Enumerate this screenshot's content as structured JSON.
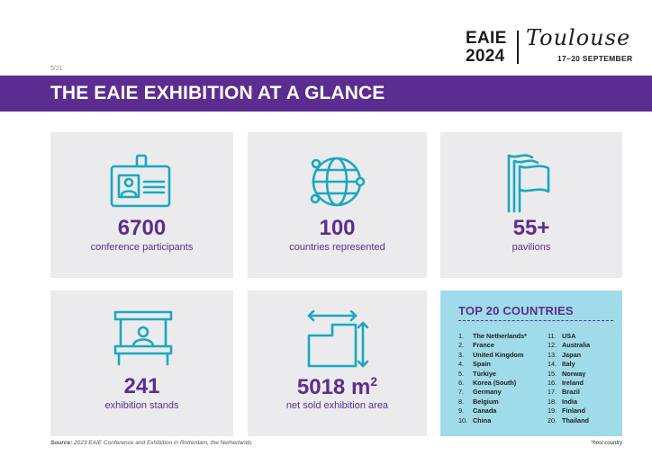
{
  "logo": {
    "org": "EAIE",
    "year": "2024",
    "city": "Toulouse",
    "dates": "17–20 SEPTEMBER"
  },
  "page_number": "5/21",
  "title": "THE EAIE EXHIBITION AT A GLANCE",
  "colors": {
    "purple": "#5c2d91",
    "teal": "#1ba7c1",
    "card_grey": "#ebebed",
    "light_blue": "#9fdbe9"
  },
  "stats": [
    {
      "icon": "id-badge-icon",
      "value": "6700",
      "label": "conference participants"
    },
    {
      "icon": "globe-network-icon",
      "value": "100",
      "label": "countries represented"
    },
    {
      "icon": "flags-icon",
      "value": "55+",
      "label": "pavilions"
    },
    {
      "icon": "booth-stand-icon",
      "value": "241",
      "label": "exhibition stands"
    },
    {
      "icon": "floor-area-icon",
      "value": "5018 m",
      "unit_sup": "2",
      "label": "net sold exhibition area"
    }
  ],
  "top_countries": {
    "title": "TOP 20 COUNTRIES",
    "left": [
      {
        "n": "1.",
        "name": "The Netherlands*"
      },
      {
        "n": "2.",
        "name": "France"
      },
      {
        "n": "3.",
        "name": "United Kingdom"
      },
      {
        "n": "4.",
        "name": "Spain"
      },
      {
        "n": "5.",
        "name": "Türkiye"
      },
      {
        "n": "6.",
        "name": "Korea (South)"
      },
      {
        "n": "7.",
        "name": "Germany"
      },
      {
        "n": "8.",
        "name": "Belgium"
      },
      {
        "n": "9.",
        "name": "Canada"
      },
      {
        "n": "10.",
        "name": "China"
      }
    ],
    "right": [
      {
        "n": "11.",
        "name": "USA"
      },
      {
        "n": "12.",
        "name": "Australia"
      },
      {
        "n": "13.",
        "name": "Japan"
      },
      {
        "n": "14.",
        "name": "Italy"
      },
      {
        "n": "15.",
        "name": "Norway"
      },
      {
        "n": "16.",
        "name": "Ireland"
      },
      {
        "n": "17.",
        "name": "Brazil"
      },
      {
        "n": "18.",
        "name": "India"
      },
      {
        "n": "19.",
        "name": "Finland"
      },
      {
        "n": "20.",
        "name": "Thailand"
      }
    ]
  },
  "source": {
    "label": "Source:",
    "text": "2023 EAIE Conference and Exhibition in Rotterdam, the Netherlands"
  },
  "footnote": "*host country"
}
